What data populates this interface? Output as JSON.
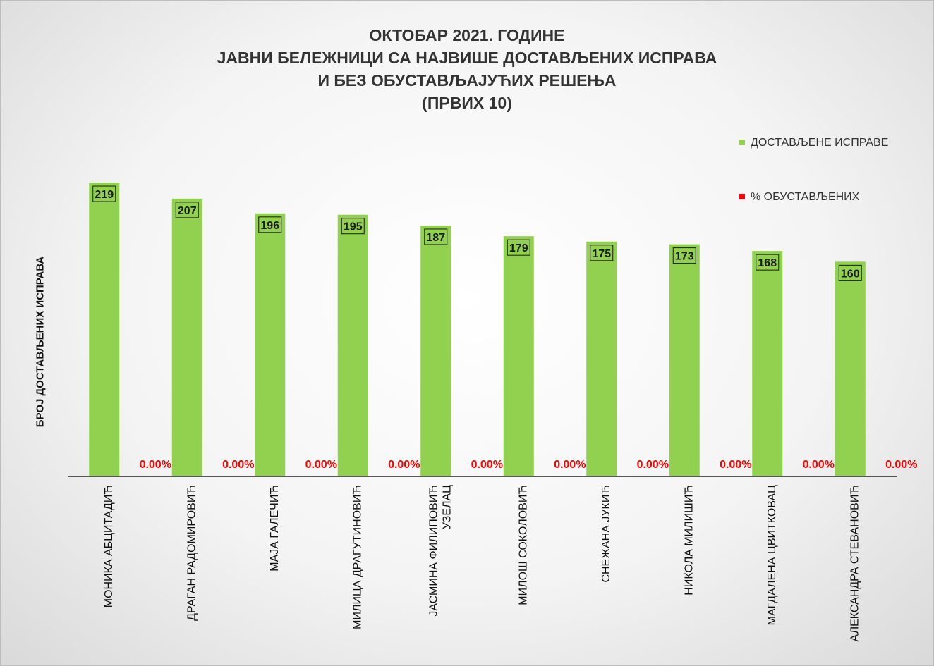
{
  "chart_data": {
    "type": "bar",
    "title": [
      "ОКТОБАР 2021. ГОДИНЕ",
      "ЈАВНИ БЕЛЕЖНИЦИ СА НАЈВИШЕ ДОСТАВЉЕНИХ ИСПРАВА",
      "И БЕЗ ОБУСТАВЉАЈУЋИХ РЕШЕЊА",
      "(ПРВИХ 10)"
    ],
    "xlabel": "",
    "ylabel": "БРОЈ ДОСТАВЉЕНИХ ИСПРАВА",
    "ylim": [
      0,
      250
    ],
    "grid": false,
    "legend_position": "right",
    "categories": [
      [
        "МОНИКА АБЦИТАДИЋ"
      ],
      [
        "ДРАГАН РАДОМИРОВИЋ"
      ],
      [
        "МАЈА ГАЛЕЧИЋ"
      ],
      [
        "МИЛИЦА ДРАГУТИНОВИЋ"
      ],
      [
        "ЈАСМИНА ФИЛИПОВИЋ",
        "УЗЕЛАЦ"
      ],
      [
        "МИЛОШ СОКОЛОВИЋ"
      ],
      [
        "СНЕЖАНА ЈУКИЋ"
      ],
      [
        "НИКОЛА МИЛИШИЋ"
      ],
      [
        "МАГДАЛЕНА ЦВИТКОВАЦ"
      ],
      [
        "АЛЕКСАНДРА СТЕВАНОВИЋ"
      ]
    ],
    "series": [
      {
        "name": "ДОСТАВЉЕНЕ ИСПРАВЕ",
        "color": "#92d050",
        "values": [
          219,
          207,
          196,
          195,
          187,
          179,
          175,
          173,
          168,
          160
        ],
        "labels": [
          "219",
          "207",
          "196",
          "195",
          "187",
          "179",
          "175",
          "173",
          "168",
          "160"
        ]
      },
      {
        "name": "% ОБУСТАВЉЕНИХ",
        "color": "#ff0000",
        "values": [
          0,
          0,
          0,
          0,
          0,
          0,
          0,
          0,
          0,
          0
        ],
        "labels": [
          "0.00%",
          "0.00%",
          "0.00%",
          "0.00%",
          "0.00%",
          "0.00%",
          "0.00%",
          "0.00%",
          "0.00%",
          "0.00%"
        ]
      }
    ]
  }
}
